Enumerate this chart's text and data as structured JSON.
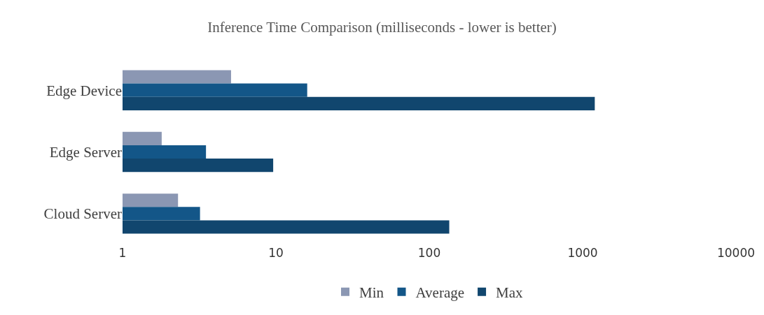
{
  "chart_data": {
    "type": "bar",
    "orientation": "horizontal",
    "title": "Inference Time Comparison (milliseconds - lower is better)",
    "categories": [
      "Edge Device",
      "Edge Server",
      "Cloud Server"
    ],
    "series": [
      {
        "name": "Min",
        "color": "#8b97b3",
        "values": [
          5.1,
          1.8,
          2.3
        ]
      },
      {
        "name": "Average",
        "color": "#135688",
        "values": [
          16,
          3.5,
          3.2
        ]
      },
      {
        "name": "Max",
        "color": "#11466e",
        "values": [
          1200,
          9.6,
          135
        ]
      }
    ],
    "log": "x",
    "xlim": [
      1,
      10000
    ],
    "xticks": [
      1,
      10,
      100,
      1000,
      10000
    ],
    "grid": false,
    "legend": "bottom"
  }
}
